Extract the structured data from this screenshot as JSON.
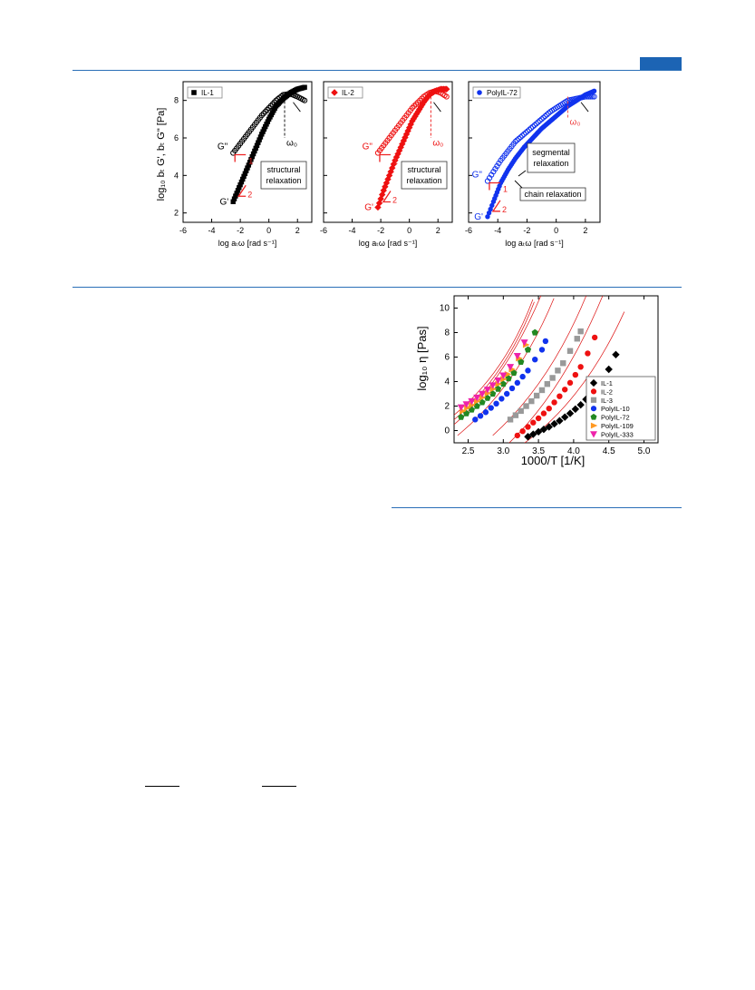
{
  "colors": {
    "rule": "#2a6fb7",
    "tab": "#1c64b4",
    "il1": "#000000",
    "il2": "#ee1111",
    "polyil72": "#1133ee",
    "slope_marker": "#ee2222",
    "fit_line": "#dd1111"
  },
  "figure_rheology": {
    "ylabel": "log₁₀ bₜ G', bₜ G\" [Pa]",
    "xlabel": "log aₜω [rad s⁻¹]",
    "panels": [
      {
        "legend": "IL-1",
        "color_key": "il1",
        "label_g2": "G\"",
        "label_g1": "G'",
        "slope_1": "1",
        "slope_2": "2",
        "omega0": "ω₀",
        "box_text": [
          "structural",
          "relaxation"
        ],
        "x_ticks": [
          "-6",
          "-4",
          "-2",
          "0",
          "2"
        ],
        "y_ticks": [
          "2",
          "4",
          "6",
          "8"
        ]
      },
      {
        "legend": "IL-2",
        "color_key": "il2",
        "label_g2": "G\"",
        "label_g1": "G'",
        "slope_1": "1",
        "slope_2": "2",
        "omega0": "ω₀",
        "box_text": [
          "structural",
          "relaxation"
        ],
        "x_ticks": [
          "-6",
          "-4",
          "-2",
          "0",
          "2"
        ]
      },
      {
        "legend": "PolyIL-72",
        "color_key": "polyil72",
        "label_g2": "G\"",
        "label_g1": "G'",
        "slope_1": "1",
        "slope_2": "2",
        "omega0": "ω₀",
        "box_text": [
          "segmental",
          "relaxation"
        ],
        "box2_text": "chain relaxation",
        "x_ticks": [
          "-6",
          "-4",
          "-2",
          "0",
          "2"
        ]
      }
    ]
  },
  "figure_viscosity": {
    "ylabel": "log₁₀ η [Pas]",
    "xlabel": "1000/T [1/K]",
    "x_ticks": [
      "2.5",
      "3.0",
      "3.5",
      "4.0",
      "4.5",
      "5.0"
    ],
    "y_ticks": [
      "0",
      "2",
      "4",
      "6",
      "8",
      "10"
    ],
    "legend": [
      {
        "name": "IL-1",
        "color": "#000000",
        "marker": "diamond"
      },
      {
        "name": "IL-2",
        "color": "#ee1111",
        "marker": "circle"
      },
      {
        "name": "IL-3",
        "color": "#999999",
        "marker": "square"
      },
      {
        "name": "PolyIL-10",
        "color": "#1133ee",
        "marker": "circle"
      },
      {
        "name": "PolyIL-72",
        "color": "#228822",
        "marker": "pentagon"
      },
      {
        "name": "PolyIL-109",
        "color": "#ff9922",
        "marker": "triangle-right"
      },
      {
        "name": "PolyIL-333",
        "color": "#ee22aa",
        "marker": "triangle-down"
      }
    ]
  },
  "chart_data": [
    {
      "type": "scatter",
      "xlabel": "log aₜω [rad s⁻¹]",
      "ylabel": "log₁₀ bₜ G', bₜ G\" [Pa]",
      "xlim": [
        -6,
        3
      ],
      "ylim": [
        1.5,
        9
      ],
      "legend_position": "top-left",
      "series": [
        {
          "name": "IL-1",
          "label": "G'",
          "x": [
            -2.5,
            -2,
            -1.5,
            -1,
            -0.5,
            0,
            0.5,
            1,
            1.5,
            2,
            2.5
          ],
          "y": [
            2.6,
            3.5,
            4.4,
            5.3,
            6.2,
            7.0,
            7.7,
            8.1,
            8.4,
            8.6,
            8.7
          ]
        },
        {
          "name": "IL-1",
          "label": "G\"",
          "x": [
            -2.5,
            -2,
            -1.5,
            -1,
            -0.5,
            0,
            0.5,
            1,
            1.5,
            2,
            2.5
          ],
          "y": [
            5.2,
            5.7,
            6.2,
            6.7,
            7.2,
            7.6,
            8.0,
            8.3,
            8.35,
            8.2,
            8.0
          ]
        }
      ]
    },
    {
      "type": "scatter",
      "xlabel": "log aₜω [rad s⁻¹]",
      "xlim": [
        -6,
        3
      ],
      "ylim": [
        1.5,
        9
      ],
      "legend_position": "top-left",
      "series": [
        {
          "name": "IL-2",
          "label": "G'",
          "x": [
            -2.2,
            -1.8,
            -1.4,
            -1,
            -0.6,
            -0.2,
            0.2,
            0.6,
            1,
            1.4,
            1.8,
            2.2,
            2.6
          ],
          "y": [
            2.3,
            3.2,
            4.0,
            4.8,
            5.5,
            6.2,
            6.9,
            7.4,
            7.9,
            8.3,
            8.5,
            8.6,
            8.6
          ]
        },
        {
          "name": "IL-2",
          "label": "G\"",
          "x": [
            -2.2,
            -1.8,
            -1.4,
            -1,
            -0.6,
            -0.2,
            0.2,
            0.6,
            1,
            1.4,
            1.8,
            2.2,
            2.6
          ],
          "y": [
            5.2,
            5.6,
            6.0,
            6.4,
            6.8,
            7.2,
            7.6,
            7.9,
            8.2,
            8.4,
            8.5,
            8.4,
            8.2
          ]
        }
      ]
    },
    {
      "type": "scatter",
      "xlabel": "log aₜω [rad s⁻¹]",
      "xlim": [
        -6,
        3
      ],
      "ylim": [
        1.5,
        9
      ],
      "legend_position": "top-left",
      "series": [
        {
          "name": "PolyIL-72",
          "label": "G'",
          "x": [
            -4.7,
            -4.3,
            -3.8,
            -3.3,
            -2.8,
            -2.2,
            -1.6,
            -1,
            -0.4,
            0.2,
            0.8,
            1.4,
            2,
            2.6
          ],
          "y": [
            1.8,
            2.6,
            3.6,
            4.3,
            4.9,
            5.5,
            6.0,
            6.5,
            6.9,
            7.3,
            7.7,
            8.0,
            8.3,
            8.5
          ]
        },
        {
          "name": "PolyIL-72",
          "label": "G\"",
          "x": [
            -4.7,
            -4.3,
            -3.8,
            -3.3,
            -2.8,
            -2.2,
            -1.6,
            -1,
            -0.4,
            0.2,
            0.8,
            1.4,
            2,
            2.6
          ],
          "y": [
            3.7,
            4.2,
            4.8,
            5.3,
            5.8,
            6.2,
            6.6,
            7.0,
            7.4,
            7.7,
            8.0,
            8.1,
            8.2,
            8.2
          ]
        }
      ]
    },
    {
      "type": "scatter",
      "xlabel": "1000/T [1/K]",
      "ylabel": "log₁₀ η [Pas]",
      "xlim": [
        2.3,
        5.2
      ],
      "ylim": [
        -1,
        11
      ],
      "legend_position": "bottom-right",
      "series": [
        {
          "name": "IL-1",
          "x": [
            3.35,
            3.5,
            3.65,
            3.8,
            3.95,
            4.1,
            4.25,
            4.4,
            4.5,
            4.6
          ],
          "y": [
            -0.5,
            -0.1,
            0.3,
            0.8,
            1.4,
            2.1,
            3.0,
            4.1,
            5.0,
            6.2
          ]
        },
        {
          "name": "IL-2",
          "x": [
            3.2,
            3.35,
            3.5,
            3.65,
            3.8,
            3.95,
            4.1,
            4.2,
            4.3
          ],
          "y": [
            -0.4,
            0.3,
            1.0,
            1.8,
            2.8,
            3.9,
            5.2,
            6.3,
            7.6
          ]
        },
        {
          "name": "IL-3",
          "x": [
            3.1,
            3.25,
            3.4,
            3.55,
            3.7,
            3.85,
            3.95,
            4.05,
            4.1
          ],
          "y": [
            0.9,
            1.6,
            2.4,
            3.3,
            4.3,
            5.5,
            6.5,
            7.5,
            8.1
          ]
        },
        {
          "name": "PolyIL-10",
          "x": [
            2.6,
            2.75,
            2.9,
            3.05,
            3.2,
            3.35,
            3.45,
            3.55,
            3.6
          ],
          "y": [
            0.9,
            1.5,
            2.2,
            3.0,
            3.9,
            4.9,
            5.8,
            6.6,
            7.3
          ]
        },
        {
          "name": "PolyIL-72",
          "x": [
            2.4,
            2.55,
            2.7,
            2.85,
            3.0,
            3.15,
            3.25,
            3.35,
            3.45
          ],
          "y": [
            1.1,
            1.7,
            2.3,
            3.0,
            3.8,
            4.7,
            5.6,
            6.6,
            8.0
          ]
        },
        {
          "name": "PolyIL-109",
          "x": [
            2.42,
            2.55,
            2.7,
            2.85,
            3.0,
            3.12,
            3.22,
            3.32
          ],
          "y": [
            1.6,
            2.1,
            2.7,
            3.4,
            4.2,
            5.0,
            5.9,
            7.0
          ]
        },
        {
          "name": "PolyIL-333",
          "x": [
            2.4,
            2.55,
            2.7,
            2.85,
            3.0,
            3.1,
            3.2,
            3.3
          ],
          "y": [
            1.9,
            2.4,
            3.0,
            3.7,
            4.5,
            5.2,
            6.1,
            7.2
          ]
        }
      ]
    }
  ]
}
